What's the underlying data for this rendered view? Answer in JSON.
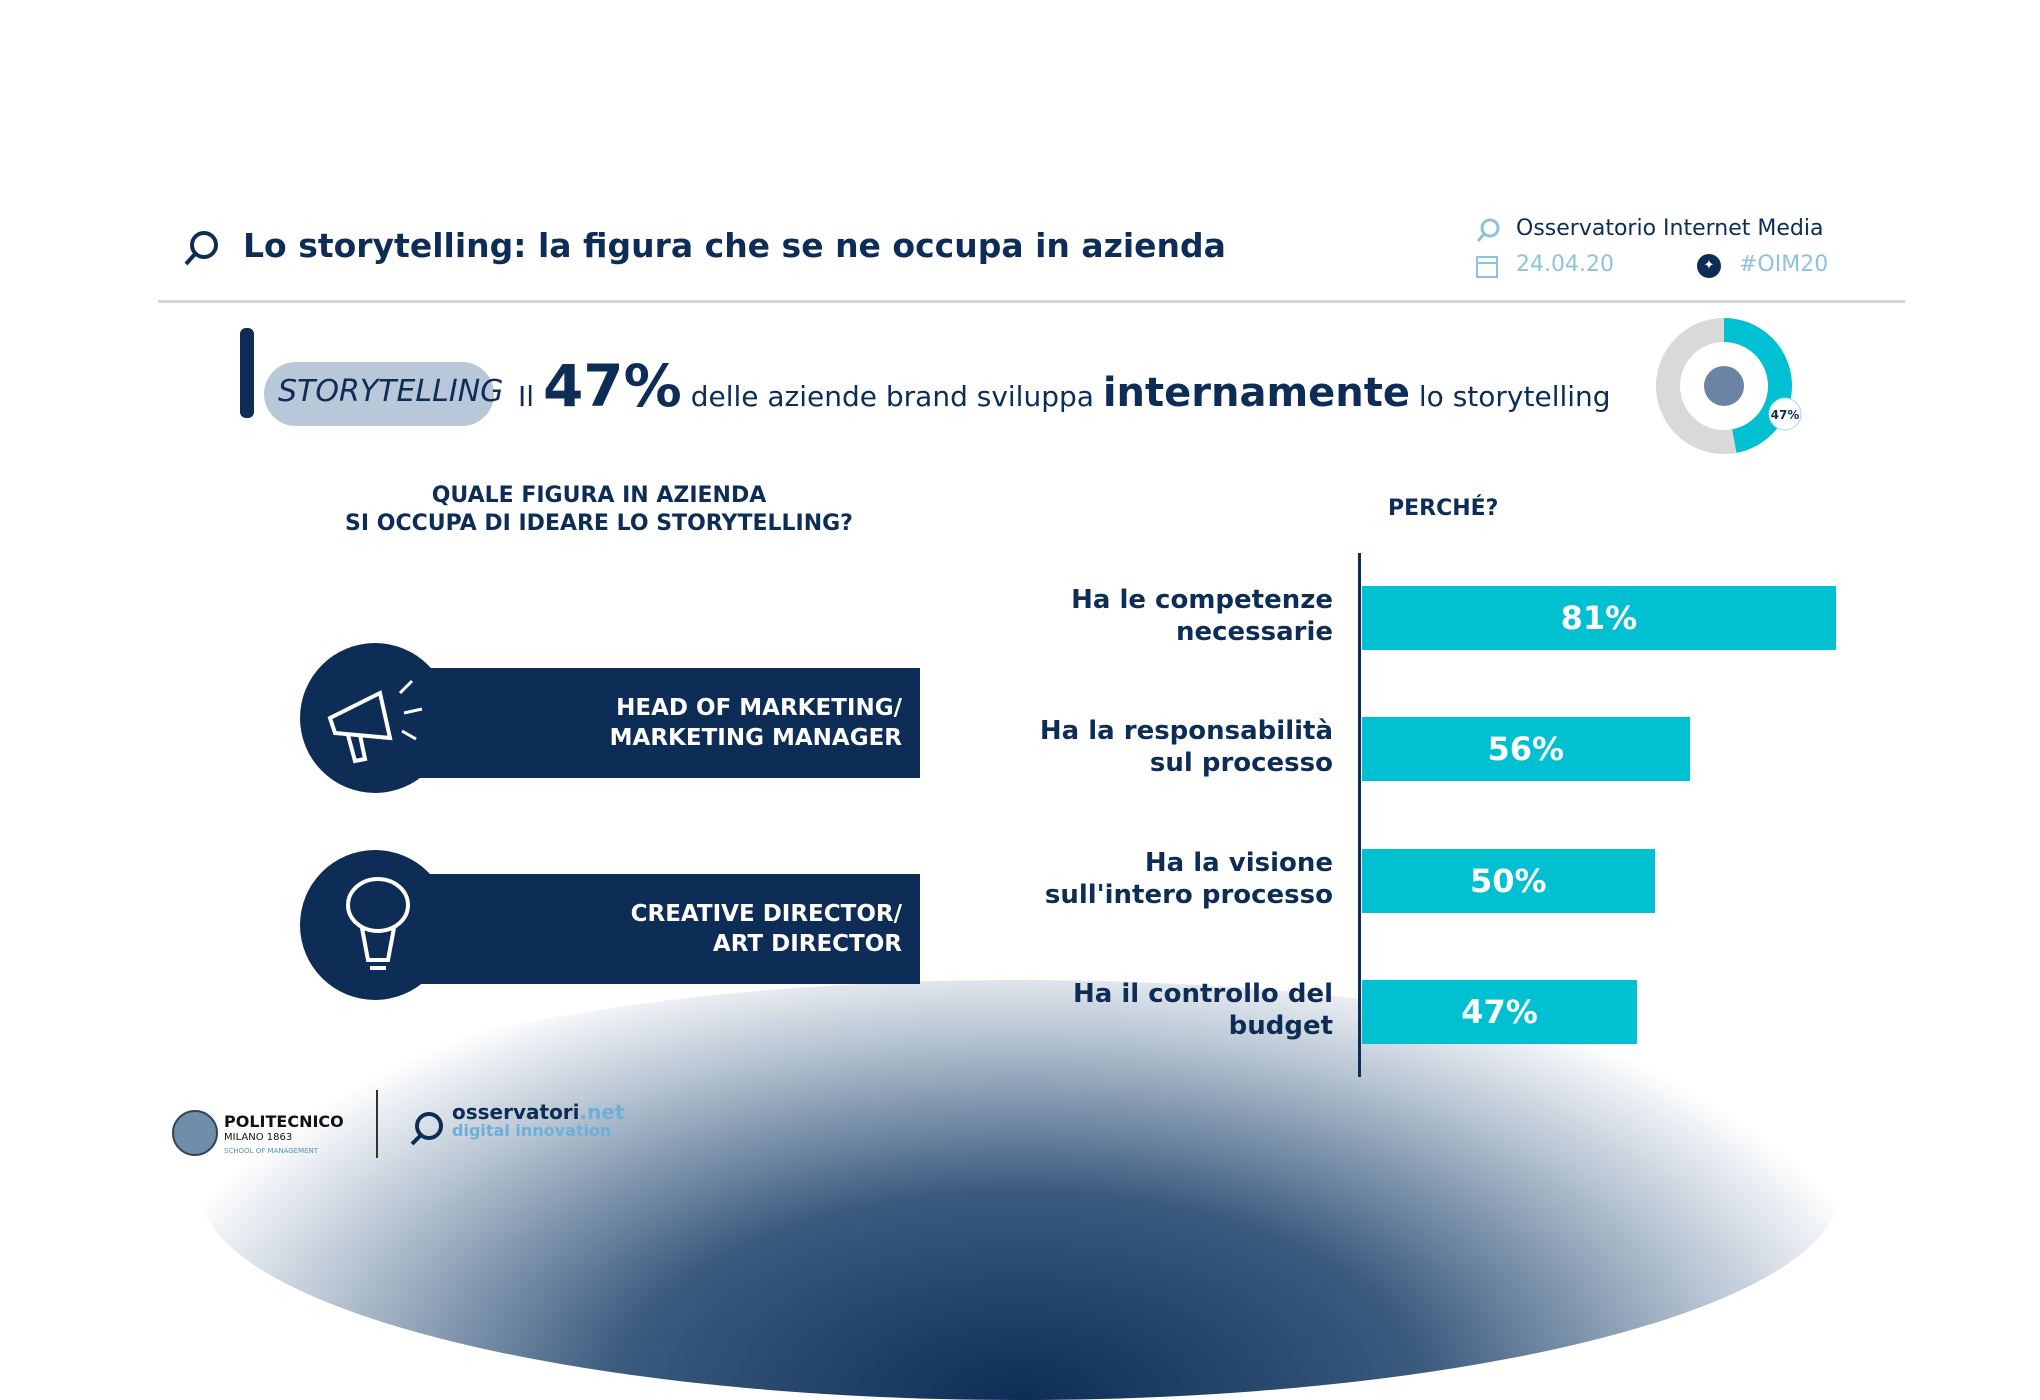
{
  "header": {
    "title": "Lo storytelling: la figura che se ne occupa in azienda",
    "observatory": "Osservatorio Internet Media",
    "date": "24.04.20",
    "hashtag": "#OIM20"
  },
  "headline": {
    "prefix": "Il",
    "percent": "47%",
    "middle": "delle aziende brand sviluppa",
    "emphasis": "internamente",
    "suffix": "lo storytelling",
    "illustration_text": "STORYTELLING"
  },
  "donut": {
    "value": 47,
    "label": "47%",
    "colors": {
      "fill": "#00c0d1",
      "rest": "#d9d9d9"
    }
  },
  "question": {
    "line1": "QUALE FIGURA IN AZIENDA",
    "line2": "SI OCCUPA DI IDEARE LO STORYTELLING?"
  },
  "roles": [
    {
      "line1": "HEAD OF MARKETING/",
      "line2": "MARKETING MANAGER",
      "icon": "megaphone-icon"
    },
    {
      "line1": "CREATIVE DIRECTOR/",
      "line2": "ART DIRECTOR",
      "icon": "brain-bulb-icon"
    }
  ],
  "chart_data": {
    "type": "bar",
    "orientation": "horizontal",
    "title": "PERCHÉ?",
    "categories": [
      [
        "Ha le competenze",
        "necessarie"
      ],
      [
        "Ha la responsabilità",
        "sul processo"
      ],
      [
        "Ha la visione",
        "sull'intero processo"
      ],
      [
        "Ha il controllo del",
        "budget"
      ]
    ],
    "values": [
      81,
      56,
      50,
      47
    ],
    "labels": [
      "81%",
      "56%",
      "50%",
      "47%"
    ],
    "xlim": [
      0,
      100
    ],
    "color": "#00c0d1"
  },
  "footer": {
    "polimi": {
      "name": "POLITECNICO",
      "sub": "MILANO 1863",
      "school": "SCHOOL OF MANAGEMENT"
    },
    "osservatori": {
      "name": "osservatori",
      "tld": ".net",
      "tagline": "digital innovation"
    }
  },
  "colors": {
    "navy": "#0d2d57",
    "accent": "#00c0d1",
    "light": "#8fc3dc"
  }
}
